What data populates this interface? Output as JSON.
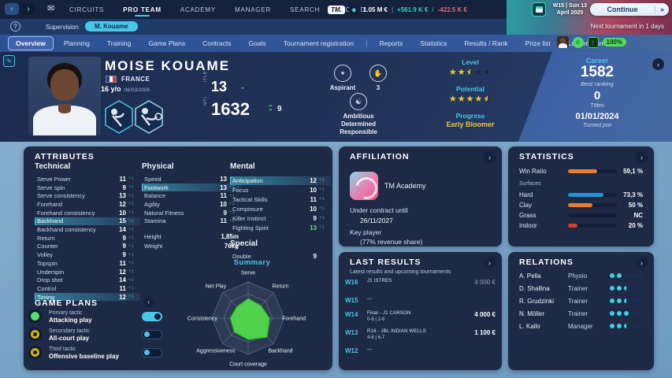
{
  "colors": {
    "accent": "#49c7e8",
    "gold": "#e9c83a",
    "green": "#55e06b",
    "bar_orange": "#e87f2f",
    "bar_blue": "#2196d9",
    "bar_red": "#d8402c"
  },
  "top_bar": {
    "menu": [
      "CIRCUITS",
      "PRO TEAM",
      "ACADEMY",
      "MANAGER",
      "SEARCH",
      "WORLD"
    ],
    "active_menu": 1,
    "logo": "TM.",
    "balance": "1.05 M €",
    "income": "+561.9 K €",
    "expense": "-422.5 K €",
    "date_line1": "W15 | Sun 13",
    "date_line2": "April 2025",
    "continue_label": "Continue",
    "continue_arrow": "»",
    "supervision": "Supervision",
    "player_pill": "M. Kouame",
    "next_tournament": "Next tournament in 1 days",
    "morale_pct": "100%"
  },
  "tab_bar": {
    "tabs": [
      "Overview",
      "Planning",
      "Training",
      "Game Plans",
      "Contracts",
      "Goals",
      "Tournament registration",
      "Reports",
      "Statistics",
      "Results / Rank",
      "Prize list",
      "Locker room"
    ],
    "active_tab": 0,
    "separator_after": 6
  },
  "header": {
    "name": "MOISE KOUAME",
    "country": "FRANCE",
    "age": "16 y/o",
    "dob": "06/03/2009",
    "rank1": {
      "label": "ITLB",
      "value": "13",
      "trend": "-"
    },
    "rank2": {
      "label": "MTL",
      "value": "1632",
      "trend": "9"
    },
    "status_badge": "Aspirant",
    "hand_value": "3",
    "traits": [
      "Ambitious",
      "Determined",
      "Responsible"
    ],
    "level_label": "Level",
    "level_stars": 2.5,
    "potential_label": "Potential",
    "potential_stars": 4.5,
    "progress_label": "Progress",
    "progress_value": "Early Bloomer",
    "career": {
      "title": "Career",
      "best": "1582",
      "best_label": "Best ranking",
      "titles": "0",
      "titles_label": "Titles",
      "turned": "01/01/2024",
      "turned_label": "Turned pro"
    }
  },
  "attributes": {
    "title": "ATTRIBUTES",
    "technical": {
      "title": "Technical",
      "rows": [
        {
          "label": "Serve Power",
          "value": 11,
          "delta": "+1"
        },
        {
          "label": "Serve spin",
          "value": 9,
          "delta": "+2"
        },
        {
          "label": "Serve consistency",
          "value": 13,
          "delta": "+1"
        },
        {
          "label": "Forehand",
          "value": 12,
          "delta": "+1"
        },
        {
          "label": "Forehand consistency",
          "value": 10,
          "delta": "+1"
        },
        {
          "label": "Backhand",
          "value": 15,
          "delta": "+2",
          "highlight": true
        },
        {
          "label": "Backhand consistency",
          "value": 14,
          "delta": "+2"
        },
        {
          "label": "Return",
          "value": 9,
          "delta": "+1"
        },
        {
          "label": "Counter",
          "value": 9,
          "delta": "+1"
        },
        {
          "label": "Volley",
          "value": 9,
          "delta": "+1"
        },
        {
          "label": "Topspin",
          "value": 11,
          "delta": "+2"
        },
        {
          "label": "Underspin",
          "value": 12,
          "delta": "+1"
        },
        {
          "label": "Drop shot",
          "value": 14,
          "delta": "+2"
        },
        {
          "label": "Control",
          "value": 11,
          "delta": "+1"
        },
        {
          "label": "Timing",
          "value": 12,
          "delta": "+1",
          "highlight": true
        }
      ]
    },
    "physical": {
      "title": "Physical",
      "rows": [
        {
          "label": "Speed",
          "value": 13,
          "delta": "+1"
        },
        {
          "label": "Footwork",
          "value": 13,
          "delta": "+1",
          "highlight": true
        },
        {
          "label": "Balance",
          "value": 11,
          "delta": "+1"
        },
        {
          "label": "Agility",
          "value": 10,
          "delta": "+1"
        },
        {
          "label": "Natural Fitness",
          "value": 9,
          "delta": "+2"
        },
        {
          "label": "Stamina",
          "value": 11,
          "delta": "+1"
        }
      ],
      "info": [
        {
          "label": "Height",
          "value": "1,85m"
        },
        {
          "label": "Weight",
          "value": "76kg"
        }
      ]
    },
    "mental": {
      "title": "Mental",
      "rows": [
        {
          "label": "Anticipation",
          "value": 12,
          "delta": "+1",
          "highlight": true
        },
        {
          "label": "Focus",
          "value": 10,
          "delta": "+1"
        },
        {
          "label": "Tactical Skills",
          "value": 11,
          "delta": "+1"
        },
        {
          "label": "Composure",
          "value": 10,
          "delta": "+1"
        },
        {
          "label": "Killer Instinct",
          "value": 9,
          "delta": "+1"
        },
        {
          "label": "Fighting Spirit",
          "value": 13,
          "delta": "+1",
          "green": true
        }
      ]
    },
    "special": {
      "title": "Special",
      "rows": [
        {
          "label": "Double",
          "value": 9,
          "delta": ""
        }
      ]
    }
  },
  "game_plans": {
    "title": "GAME PLANS",
    "items": [
      {
        "line1": "Primary tactic",
        "line2": "Attacking play",
        "color": "#52e06b",
        "filled": true,
        "enabled": true
      },
      {
        "line1": "Secondary tactic",
        "line2": "All-court play",
        "color": "#d4b012",
        "filled": false,
        "enabled": false
      },
      {
        "line1": "Third tactic",
        "line2": "Offensive baseline play",
        "color": "#d4b012",
        "filled": false,
        "enabled": false
      }
    ]
  },
  "chart_data": {
    "type": "radar",
    "title": "Summary",
    "axes": [
      "Serve",
      "Return",
      "Forehand",
      "Backhand",
      "Court coverage",
      "Aggressiveness",
      "Consistency",
      "Net Play"
    ],
    "values": [
      11,
      10,
      12,
      15,
      12,
      11,
      10,
      9
    ],
    "max": 20
  },
  "affiliation": {
    "title": "AFFILIATION",
    "academy": "TM Academy",
    "contract_line1": "Under contract until",
    "contract_date": "26/11/2027",
    "key_line1": "Key player",
    "key_line2": "(77% revenue share)"
  },
  "last_results": {
    "title": "LAST RESULTS",
    "subtitle": "Latest results and upcoming tournaments",
    "rows": [
      {
        "week": "W16",
        "line1": "J1 ISTRES",
        "line2": "",
        "prize": "4 000 €",
        "muted": true
      },
      {
        "week": "W15",
        "line1": "---",
        "line2": "",
        "prize": ""
      },
      {
        "week": "W14",
        "line1": "Final - J1 CARSON",
        "line2": "0-6 | 2-6",
        "prize": "4 000 €"
      },
      {
        "week": "W13",
        "line1": "R16 - JBL INDIAN WELLS",
        "line2": "4-6 | 6-7",
        "prize": "1 100 €"
      },
      {
        "week": "W12",
        "line1": "---",
        "line2": "",
        "prize": ""
      }
    ]
  },
  "statistics": {
    "title": "STATISTICS",
    "win_ratio": {
      "label": "Win Ratio",
      "pct": 59.1,
      "display": "59,1 %",
      "color": "#e87f2f"
    },
    "surfaces_label": "Surfaces",
    "surfaces": [
      {
        "label": "Hard",
        "pct": 73.3,
        "display": "73,3 %",
        "color": "#2196d9"
      },
      {
        "label": "Clay",
        "pct": 50,
        "display": "50 %",
        "color": "#e87f2f"
      },
      {
        "label": "Grass",
        "pct": 0,
        "display": "NC",
        "color": "#2196d9"
      },
      {
        "label": "Indoor",
        "pct": 20,
        "display": "20 %",
        "color": "#d8402c"
      }
    ]
  },
  "relations": {
    "title": "RELATIONS",
    "rows": [
      {
        "name": "A. Pella",
        "role": "Physio",
        "level": 2
      },
      {
        "name": "D. Shallina",
        "role": "Trainer",
        "level": 2.5
      },
      {
        "name": "R. Grudzinki",
        "role": "Trainer",
        "level": 2.5
      },
      {
        "name": "N. Möller",
        "role": "Trainer",
        "level": 3
      },
      {
        "name": "L. Kallo",
        "role": "Manager",
        "level": 2.5
      }
    ]
  }
}
